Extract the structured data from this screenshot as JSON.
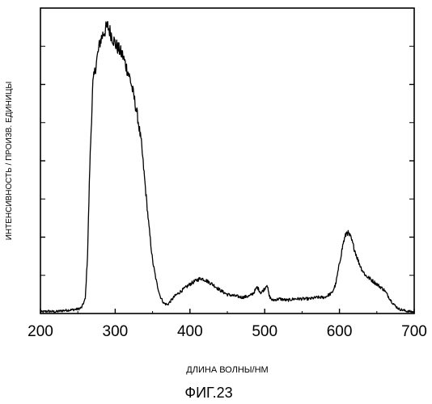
{
  "figure_caption": "ФИГ.23",
  "chart_data": {
    "type": "line",
    "title": "",
    "xlabel": "ДЛИНА ВОЛНЫ/НМ",
    "ylabel": "ИНТЕНСИВНОСТЬ / ПРОИЗВ. ЕДИНИЦЫ",
    "xlim": [
      200,
      700
    ],
    "ylim": [
      0,
      1
    ],
    "x_ticks": [
      200,
      300,
      400,
      500,
      600,
      700
    ],
    "y_tick_labels_shown": false,
    "grid": false,
    "legend": "none",
    "line_color": "#000000",
    "series": [
      {
        "x": [
          200,
          210,
          220,
          230,
          240,
          250,
          255,
          260,
          263,
          266,
          270,
          275,
          280,
          285,
          290,
          295,
          300,
          305,
          310,
          315,
          320,
          325,
          330,
          335,
          340,
          345,
          350,
          355,
          360,
          365,
          370,
          375,
          380,
          390,
          400,
          410,
          415,
          420,
          430,
          440,
          450,
          460,
          470,
          480,
          485,
          490,
          495,
          500,
          503,
          506,
          510,
          520,
          530,
          540,
          550,
          560,
          570,
          580,
          590,
          595,
          600,
          605,
          610,
          615,
          620,
          625,
          630,
          635,
          640,
          645,
          650,
          655,
          660,
          665,
          670,
          675,
          680,
          690,
          700
        ],
        "y": [
          0.005,
          0.008,
          0.006,
          0.01,
          0.012,
          0.015,
          0.02,
          0.05,
          0.2,
          0.5,
          0.78,
          0.86,
          0.93,
          0.96,
          0.98,
          0.95,
          0.92,
          0.9,
          0.88,
          0.84,
          0.8,
          0.74,
          0.67,
          0.58,
          0.44,
          0.3,
          0.18,
          0.11,
          0.06,
          0.035,
          0.03,
          0.045,
          0.06,
          0.08,
          0.1,
          0.115,
          0.12,
          0.115,
          0.1,
          0.08,
          0.065,
          0.06,
          0.055,
          0.06,
          0.07,
          0.09,
          0.07,
          0.085,
          0.1,
          0.06,
          0.045,
          0.05,
          0.045,
          0.05,
          0.05,
          0.05,
          0.055,
          0.055,
          0.07,
          0.1,
          0.17,
          0.24,
          0.28,
          0.26,
          0.22,
          0.18,
          0.15,
          0.13,
          0.12,
          0.11,
          0.1,
          0.09,
          0.08,
          0.06,
          0.04,
          0.025,
          0.015,
          0.008,
          0.005
        ]
      }
    ]
  }
}
